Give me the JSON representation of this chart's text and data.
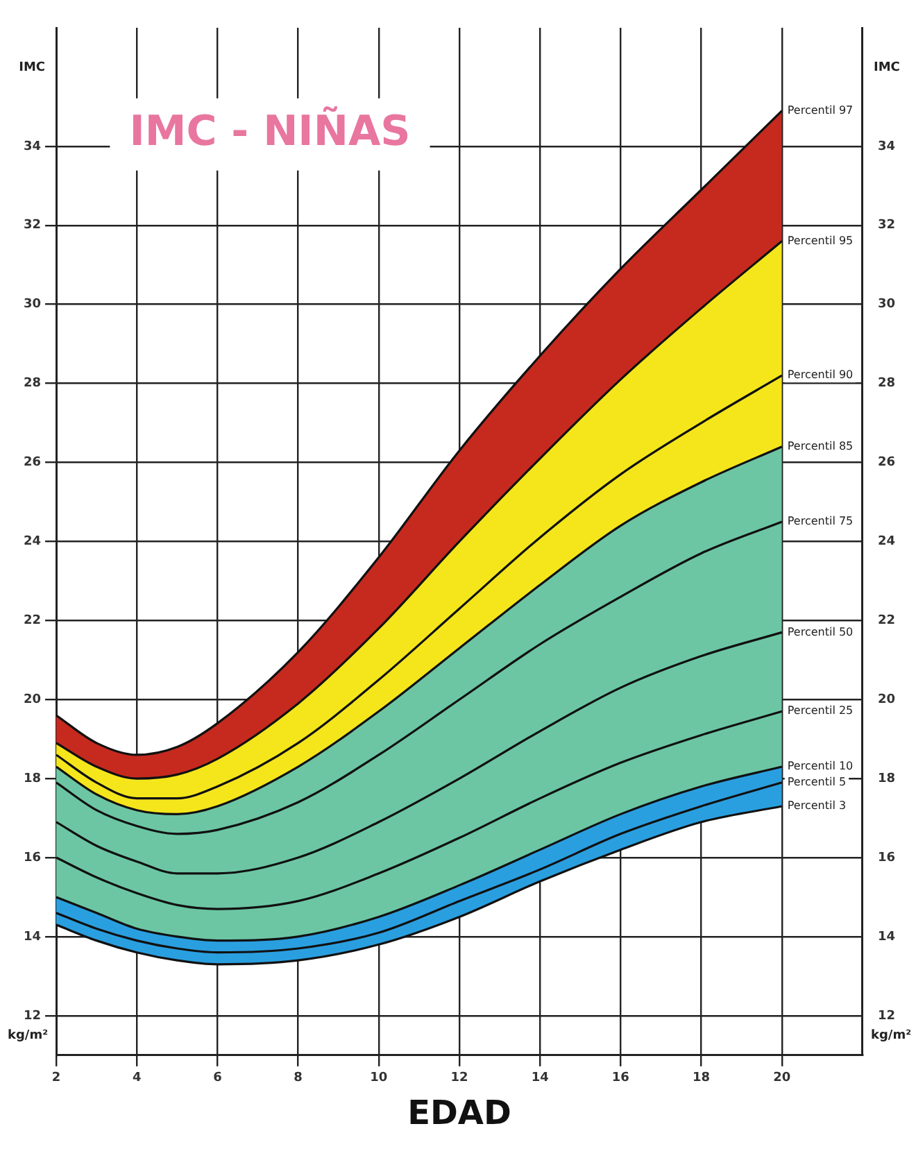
{
  "chart_data": {
    "type": "area",
    "title": "IMC - NIÑAS",
    "xlabel": "EDAD",
    "ylabel": "IMC",
    "y2label": "IMC",
    "annotations": [
      "kg/m²",
      "kg/m²"
    ],
    "x": [
      2,
      3,
      4,
      5,
      6,
      8,
      10,
      12,
      14,
      16,
      18,
      20
    ],
    "series": [
      {
        "name": "Percentil 97",
        "color": "#c62a1f",
        "values": [
          19.6,
          18.9,
          18.6,
          18.8,
          19.4,
          21.2,
          23.6,
          26.3,
          28.7,
          30.9,
          32.9,
          34.9
        ]
      },
      {
        "name": "Percentil 95",
        "color": "#f5e61c",
        "values": [
          18.9,
          18.3,
          18.0,
          18.1,
          18.5,
          19.9,
          21.8,
          24.0,
          26.1,
          28.1,
          29.9,
          31.6
        ]
      },
      {
        "name": "Percentil 90",
        "type": "line",
        "color": "#111111",
        "values": [
          18.6,
          17.9,
          17.5,
          17.5,
          17.8,
          18.9,
          20.5,
          22.3,
          24.1,
          25.7,
          27.0,
          28.2
        ]
      },
      {
        "name": "Percentil 85",
        "color": "#6cc6a4",
        "values": [
          18.3,
          17.6,
          17.2,
          17.1,
          17.3,
          18.3,
          19.7,
          21.3,
          22.9,
          24.4,
          25.5,
          26.4
        ]
      },
      {
        "name": "Percentil 75",
        "type": "line",
        "color": "#111111",
        "values": [
          17.9,
          17.2,
          16.8,
          16.6,
          16.7,
          17.4,
          18.6,
          20.0,
          21.4,
          22.6,
          23.7,
          24.5
        ]
      },
      {
        "name": "Percentil 50",
        "type": "line",
        "color": "#111111",
        "values": [
          16.9,
          16.3,
          15.9,
          15.6,
          15.6,
          16.0,
          16.9,
          18.0,
          19.2,
          20.3,
          21.1,
          21.7
        ]
      },
      {
        "name": "Percentil 25",
        "type": "line",
        "color": "#111111",
        "values": [
          16.0,
          15.5,
          15.1,
          14.8,
          14.7,
          14.9,
          15.6,
          16.5,
          17.5,
          18.4,
          19.1,
          19.7
        ]
      },
      {
        "name": "Percentil 10",
        "color": "#2a9fe0",
        "values": [
          15.0,
          14.6,
          14.2,
          14.0,
          13.9,
          14.0,
          14.5,
          15.3,
          16.2,
          17.1,
          17.8,
          18.3
        ]
      },
      {
        "name": "Percentil 5",
        "type": "line",
        "color": "#111111",
        "values": [
          14.6,
          14.2,
          13.9,
          13.7,
          13.6,
          13.7,
          14.1,
          14.9,
          15.7,
          16.6,
          17.3,
          17.9
        ]
      },
      {
        "name": "Percentil 3",
        "type": "line",
        "color": "#111111",
        "values": [
          14.3,
          13.9,
          13.6,
          13.4,
          13.3,
          13.4,
          13.8,
          14.5,
          15.4,
          16.2,
          16.9,
          17.3
        ]
      }
    ],
    "xlim": [
      2,
      22
    ],
    "xticks": [
      2,
      4,
      6,
      8,
      10,
      12,
      14,
      16,
      18,
      20
    ],
    "ylim": [
      11,
      37
    ],
    "yticks": [
      12,
      14,
      16,
      18,
      20,
      22,
      24,
      26,
      28,
      30,
      32,
      34
    ],
    "y2lim": [
      11,
      37
    ],
    "y2ticks": [
      12,
      14,
      16,
      18,
      20,
      22,
      24,
      26,
      28,
      30,
      32,
      34
    ],
    "grid": true,
    "legend": false
  }
}
